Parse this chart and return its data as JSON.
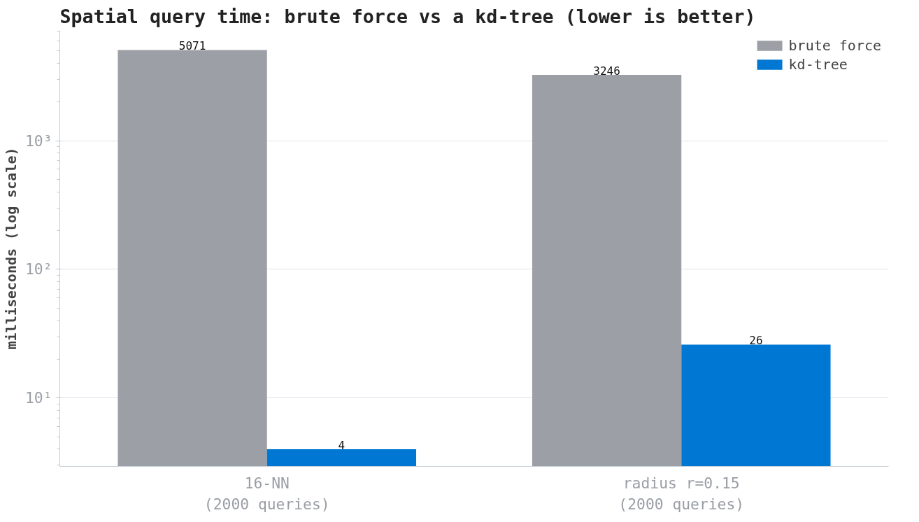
{
  "chart_data": {
    "type": "bar",
    "title": "Spatial query time: brute force vs a kd-tree (lower is better)",
    "ylabel": "milliseconds (log scale)",
    "categories": [
      "16-NN\n(2000 queries)",
      "radius r=0.15\n(2000 queries)"
    ],
    "series": [
      {
        "name": "brute force",
        "color": "#9ca0a6",
        "values": [
          5071,
          3246
        ]
      },
      {
        "name": "kd-tree",
        "color": "#0077d2",
        "values": [
          4,
          26
        ]
      }
    ],
    "log": true,
    "ylim": [
      2.94,
      7200
    ],
    "yticks": [
      {
        "value": 10,
        "label": "10¹"
      },
      {
        "value": 100,
        "label": "10²"
      },
      {
        "value": 1000,
        "label": "10³"
      }
    ],
    "grid": "y",
    "legend": "top right",
    "data_labels": true
  }
}
